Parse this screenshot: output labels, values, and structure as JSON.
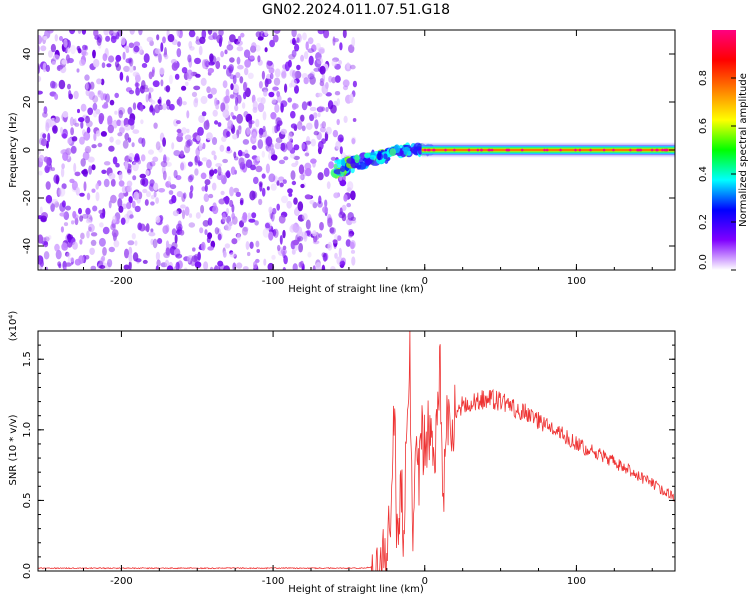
{
  "title": "GN02.2024.011.07.51.G18",
  "chart_data": [
    {
      "type": "heatmap",
      "xlabel": "Height of straight line (km)",
      "ylabel": "Frequency (Hz)",
      "xlim": [
        -255,
        165
      ],
      "ylim": [
        -50,
        50
      ],
      "xticks": [
        -200,
        -100,
        0,
        100
      ],
      "yticks": [
        -40,
        -20,
        0,
        20,
        40
      ],
      "colorbar": {
        "label": "Normalized spectral amplitude",
        "range": [
          0,
          1
        ],
        "ticks": [
          "0.0",
          "0.2",
          "0.4",
          "0.6",
          "0.8"
        ],
        "colormap": [
          "#ffffff",
          "#8000ff",
          "#0000ff",
          "#00ffff",
          "#00ff00",
          "#ffff00",
          "#ff8000",
          "#ff0000",
          "#ff0080"
        ]
      },
      "regions": [
        {
          "description": "noise",
          "x_range": [
            -255,
            -52
          ],
          "freq_range": [
            -50,
            50
          ],
          "amplitude": 0.1
        },
        {
          "description": "transition",
          "x_range": [
            -60,
            5
          ],
          "freq_range": [
            -10,
            2
          ],
          "amplitude": 0.4
        },
        {
          "description": "signal",
          "x_range": [
            0,
            165
          ],
          "freq": 0,
          "amplitude": 0.85
        }
      ],
      "grid": false
    },
    {
      "type": "line",
      "xlabel": "Height of straight line (km)",
      "ylabel": "SNR (10 * v/v)",
      "multiplier": "(x10⁴)",
      "xlim": [
        -255,
        165
      ],
      "ylim": [
        0,
        1.7
      ],
      "xticks": [
        -200,
        -100,
        0,
        100
      ],
      "yticks": [
        "0.0",
        "0.5",
        "1.0",
        "1.5"
      ],
      "color": "#ee3333",
      "x": [
        -255,
        -200,
        -100,
        -40,
        -30,
        -25,
        -22,
        -20,
        -18,
        -16,
        -14,
        -12,
        -10,
        -8,
        -6,
        -4,
        -2,
        0,
        3,
        6,
        9,
        10,
        12,
        14,
        16,
        20,
        25,
        30,
        40,
        50,
        60,
        70,
        80,
        90,
        100,
        110,
        120,
        130,
        140,
        150,
        160,
        165
      ],
      "y": [
        0.02,
        0.02,
        0.02,
        0.02,
        0.04,
        0.1,
        0.4,
        1.25,
        0.05,
        0.7,
        0.3,
        0.9,
        1.65,
        0.2,
        0.8,
        0.6,
        0.95,
        0.85,
        1.0,
        0.9,
        1.05,
        1.58,
        0.45,
        1.1,
        1.05,
        1.1,
        1.18,
        1.2,
        1.22,
        1.2,
        1.15,
        1.1,
        1.03,
        0.97,
        0.9,
        0.85,
        0.8,
        0.74,
        0.68,
        0.62,
        0.55,
        0.52
      ],
      "grid": false
    }
  ]
}
